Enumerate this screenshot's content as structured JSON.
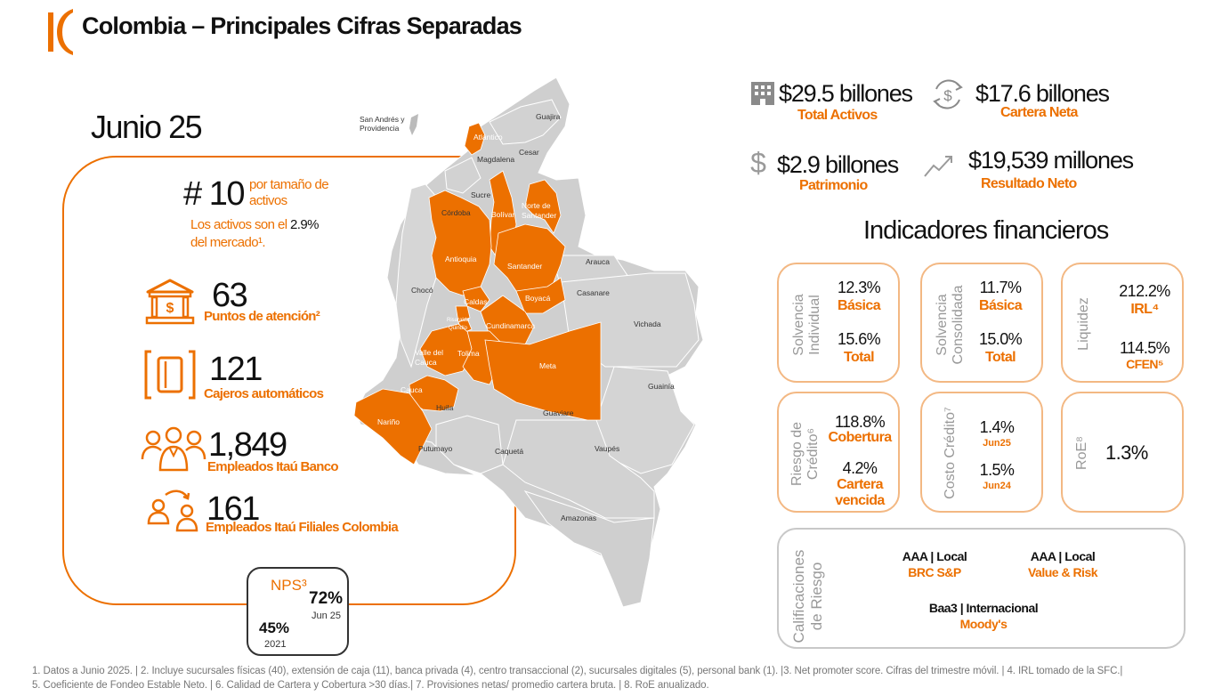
{
  "header": {
    "title": "Colombia – Principales Cifras Separadas",
    "accent_color": "#ec7000"
  },
  "period": "Junio 25",
  "ranking": {
    "number": "# 10",
    "label": "por tamaño de activos",
    "share_text": "Los activos son el",
    "share_value": "2.9%",
    "share_suffix": "del mercado¹."
  },
  "stats": [
    {
      "icon": "bank-building-icon",
      "value": "63",
      "label": "Puntos de atención²"
    },
    {
      "icon": "atm-icon",
      "value": "121",
      "label": "Cajeros automáticos"
    },
    {
      "icon": "people-group-icon",
      "value": "1,849",
      "label": "Empleados  Itaú Banco"
    },
    {
      "icon": "people-transfer-icon",
      "value": "161",
      "label": "Empleados  Itaú Filiales Colombia"
    }
  ],
  "nps": {
    "label": "NPS³",
    "current_value": "72%",
    "current_period": "Jun 25",
    "prev_value": "45%",
    "prev_period": "2021"
  },
  "map": {
    "inset_label": "San Andrés y Providencia",
    "regions_highlighted": [
      "Atlántico",
      "Bolívar",
      "Norte de Santander",
      "Antioquia",
      "Santander",
      "Caldas",
      "Risaralda",
      "Quindío",
      "Boyacá",
      "Cundinamarca",
      "Valle del Cauca",
      "Tolima",
      "Cauca",
      "Nariño",
      "Meta"
    ],
    "labels": [
      "Guajira",
      "Magdalena",
      "Cesar",
      "Atlántico",
      "Sucre",
      "Córdoba",
      "Bolívar",
      "Norte de Santander",
      "Antioquia",
      "Santander",
      "Arauca",
      "Chocó",
      "Casanare",
      "Boyacá",
      "Caldas",
      "Risaralda",
      "Quindío",
      "Cundinamarca",
      "Vichada",
      "Valle del Cauca",
      "Tolima",
      "Meta",
      "Guainía",
      "Cauca",
      "Huila",
      "Guaviare",
      "Nariño",
      "Putumayo",
      "Caquetá",
      "Vaupés",
      "Amazonas"
    ]
  },
  "kpis": [
    {
      "icon": "building-icon",
      "value": "$29.5 billones",
      "label": "Total Activos"
    },
    {
      "icon": "currency-cycle-icon",
      "value": "$17.6 billones",
      "label": "Cartera Neta"
    },
    {
      "icon": "dollar-icon",
      "value": "$2.9 billones",
      "label": "Patrimonio"
    },
    {
      "icon": "trend-up-icon",
      "value": "$19,539 millones",
      "label": "Resultado Neto"
    }
  ],
  "indicators_title": "Indicadores financieros",
  "indicators": {
    "solvencia_individual": {
      "title_1": "Solvencia",
      "title_2": "Individual",
      "v1": "12.3%",
      "l1": "Básica",
      "v2": "15.6%",
      "l2": "Total"
    },
    "solvencia_consolidada": {
      "title_1": "Solvencia",
      "title_2": "Consolidada",
      "v1": "11.7%",
      "l1": "Básica",
      "v2": "15.0%",
      "l2": "Total"
    },
    "liquidez": {
      "title": "Liquidez",
      "v1": "212.2%",
      "l1": "IRL⁴",
      "v2": "114.5%",
      "l2": "CFEN⁵"
    },
    "riesgo_credito": {
      "title_1": "Riesgo de",
      "title_2": "Crédito⁶",
      "v1": "118.8%",
      "l1": "Cobertura",
      "v2": "4.2%",
      "l2": "Cartera vencida"
    },
    "costo_credito": {
      "title": "Costo Crédito⁷",
      "v1": "1.4%",
      "l1": "Jun25",
      "v2": "1.5%",
      "l2": "Jun24"
    },
    "roe": {
      "title": "RoE⁸",
      "value": "1.3%"
    }
  },
  "ratings": {
    "title_1": "Calificaciones",
    "title_2": "de Riesgo",
    "items": [
      {
        "rating": "AAA | Local",
        "agency": "BRC S&P"
      },
      {
        "rating": "AAA | Local",
        "agency": "Value & Risk"
      },
      {
        "rating": "Baa3 | Internacional",
        "agency": "Moody's"
      }
    ]
  },
  "footnotes": [
    "1. Datos a Junio  2025. | 2. Incluye sucursales físicas (40),  extensión de caja (11), banca privada (4), centro transaccional (2), sucursales digitales (5), personal bank (1).  |3.  Net promoter score. Cifras del trimestre móvil. | 4. IRL tomado de la SFC.|",
    "5.  Coeficiente de Fondeo Estable Neto. | 6. Calidad de Cartera y Cobertura >30 días.| 7. Provisiones netas/ promedio cartera bruta. | 8. RoE anualizado."
  ]
}
